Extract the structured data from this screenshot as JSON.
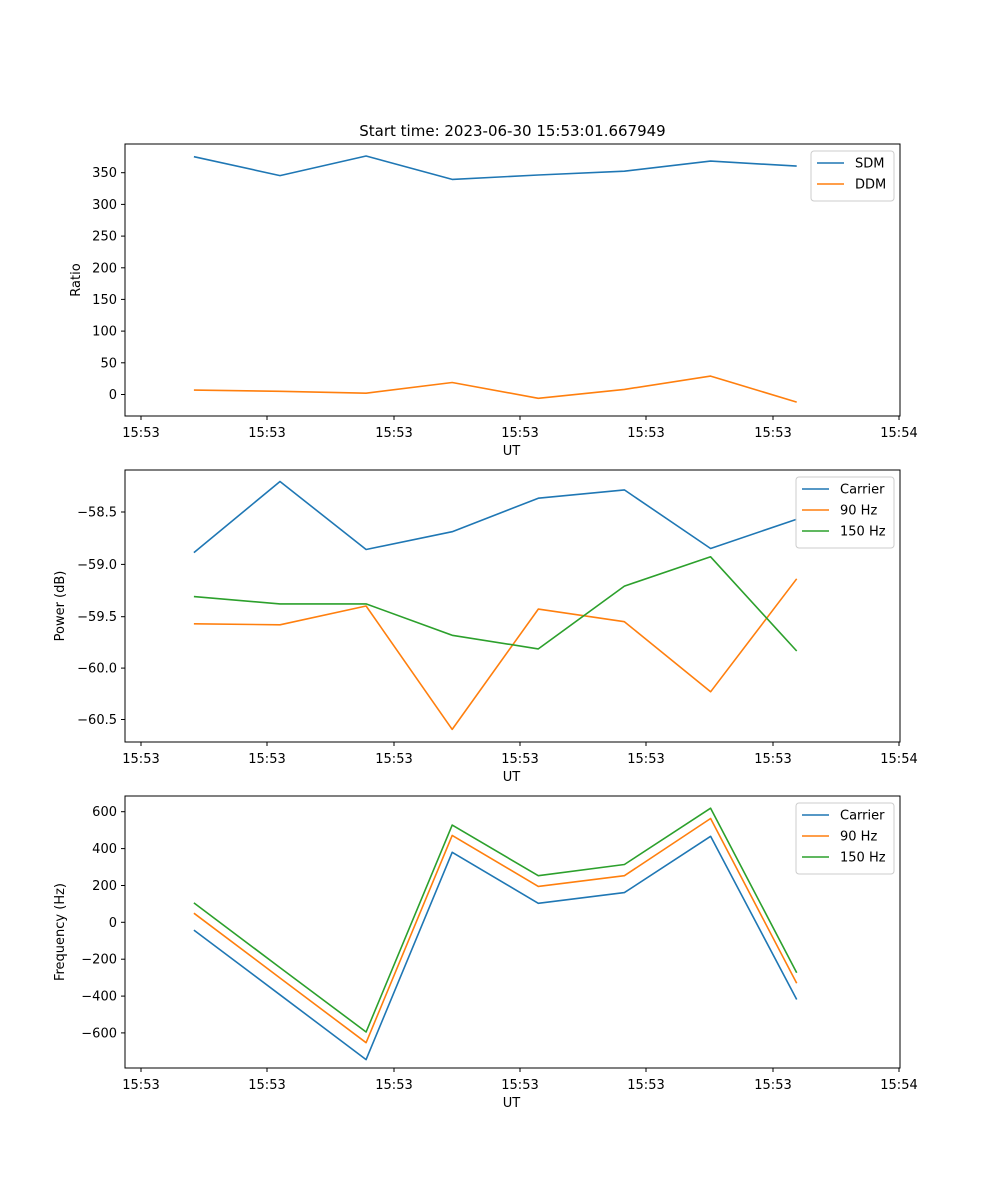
{
  "chart_data": [
    {
      "type": "line",
      "title": "Start time: 2023-06-30 15:53:01.667949",
      "xlabel": "UT",
      "ylabel": "Ratio",
      "x_ticks": [
        "15:53",
        "15:53",
        "15:53",
        "15:53",
        "15:53",
        "15:53",
        "15:54"
      ],
      "y_ticks": [
        "0",
        "50",
        "100",
        "150",
        "200",
        "250",
        "300",
        "350"
      ],
      "x": [
        1,
        2,
        3,
        4,
        5,
        6,
        7,
        8
      ],
      "xlim": [
        0.2,
        9.2
      ],
      "ylim": [
        -35,
        395
      ],
      "grid": false,
      "legend_position": "upper right",
      "series": [
        {
          "name": "SDM",
          "color": "#1f77b4",
          "values": [
            375,
            345,
            376,
            339,
            346,
            352,
            368,
            360
          ]
        },
        {
          "name": "DDM",
          "color": "#ff7f0e",
          "values": [
            6,
            4,
            1,
            18,
            -7,
            7,
            28,
            -13
          ]
        }
      ]
    },
    {
      "type": "line",
      "title": "",
      "xlabel": "UT",
      "ylabel": "Power (dB)",
      "x_ticks": [
        "15:53",
        "15:53",
        "15:53",
        "15:53",
        "15:53",
        "15:53",
        "15:54"
      ],
      "y_ticks": [
        "−60.5",
        "−60.0",
        "−59.5",
        "−59.0",
        "−58.5"
      ],
      "x": [
        1,
        2,
        3,
        4,
        5,
        6,
        7,
        8
      ],
      "xlim": [
        0.2,
        9.2
      ],
      "ylim": [
        -60.72,
        -58.12
      ],
      "grid": false,
      "legend_position": "upper right",
      "series": [
        {
          "name": "Carrier",
          "color": "#1f77b4",
          "values": [
            -58.91,
            -58.23,
            -58.88,
            -58.71,
            -58.39,
            -58.31,
            -58.87,
            -58.59
          ]
        },
        {
          "name": "90 Hz",
          "color": "#ff7f0e",
          "values": [
            -59.59,
            -59.6,
            -59.42,
            -60.6,
            -59.45,
            -59.57,
            -60.24,
            -59.16
          ]
        },
        {
          "name": "150 Hz",
          "color": "#2ca02c",
          "values": [
            -59.33,
            -59.4,
            -59.4,
            -59.7,
            -59.83,
            -59.23,
            -58.95,
            -59.85
          ]
        }
      ]
    },
    {
      "type": "line",
      "title": "",
      "xlabel": "UT",
      "ylabel": "Frequency (Hz)",
      "x_ticks": [
        "15:53",
        "15:53",
        "15:53",
        "15:53",
        "15:53",
        "15:53",
        "15:54"
      ],
      "y_ticks": [
        "−600",
        "−400",
        "−200",
        "0",
        "200",
        "400",
        "600"
      ],
      "x": [
        1,
        2,
        3,
        4,
        5,
        6,
        7,
        8
      ],
      "xlim": [
        0.2,
        9.2
      ],
      "ylim": [
        -770,
        680
      ],
      "grid": false,
      "legend_position": "upper right",
      "series": [
        {
          "name": "Carrier",
          "color": "#1f77b4",
          "values": [
            -35,
            -380,
            -725,
            380,
            108,
            165,
            465,
            -405
          ]
        },
        {
          "name": "90 Hz",
          "color": "#ff7f0e",
          "values": [
            55,
            -290,
            -635,
            470,
            198,
            255,
            560,
            -318
          ]
        },
        {
          "name": "150 Hz",
          "color": "#2ca02c",
          "values": [
            110,
            -235,
            -578,
            525,
            255,
            315,
            615,
            -262
          ]
        }
      ]
    }
  ]
}
